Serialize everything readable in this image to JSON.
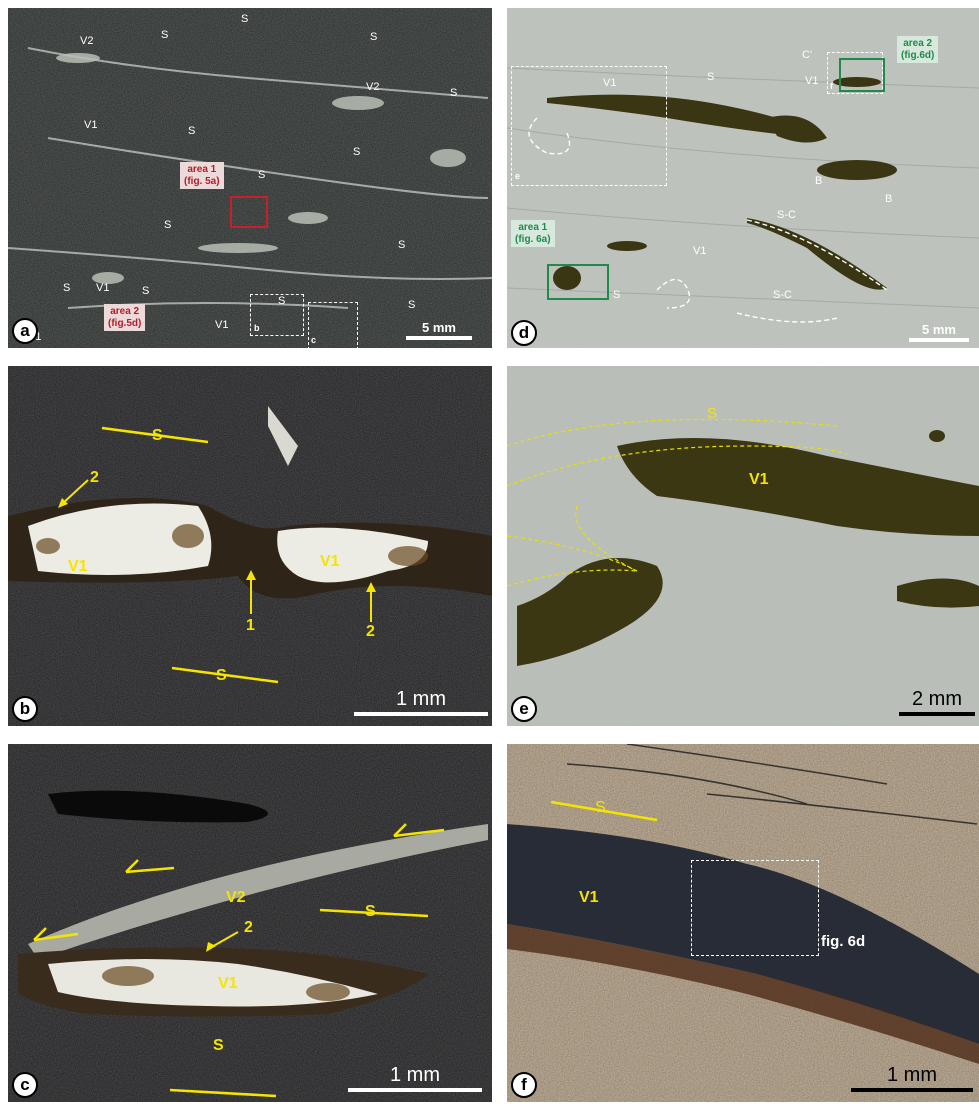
{
  "panels": {
    "a": {
      "badge": "a",
      "scale": "5 mm",
      "labels": [
        "V2",
        "S",
        "S",
        "S",
        "V2",
        "S",
        "V1",
        "S",
        "S",
        "S",
        "S",
        "S",
        "V1",
        "S",
        "V1",
        "S",
        "S",
        "V1",
        "S"
      ],
      "box_labels": [
        "b",
        "c"
      ],
      "area1": {
        "line1": "area 1",
        "line2": "(fig. 5a)"
      },
      "area2": {
        "line1": "area 2",
        "line2": "(fig.5d)"
      }
    },
    "b": {
      "badge": "b",
      "scale": "1 mm",
      "labels": {
        "s_top": "S",
        "s_bottom": "S",
        "v1_left": "V1",
        "v1_right": "V1",
        "n2_left": "2",
        "n1": "1",
        "n2_right": "2"
      }
    },
    "c": {
      "badge": "c",
      "scale": "1 mm",
      "labels": {
        "v2": "V2",
        "s_right": "S",
        "n2": "2",
        "v1": "V1",
        "s_bottom": "S"
      }
    },
    "d": {
      "badge": "d",
      "scale": "5 mm",
      "labels": [
        "S",
        "C'",
        "V1",
        "V1",
        "B",
        "B",
        "S-C",
        "V1",
        "S-C",
        "S"
      ],
      "box_labels": [
        "e",
        "f"
      ],
      "area1": {
        "line1": "area 1",
        "line2": "(fig. 6a)"
      },
      "area2": {
        "line1": "area 2",
        "line2": "(fig.6d)"
      }
    },
    "e": {
      "badge": "e",
      "scale": "2 mm",
      "labels": {
        "s": "S",
        "v1": "V1"
      }
    },
    "f": {
      "badge": "f",
      "scale": "1 mm",
      "labels": {
        "s": "S",
        "v1": "V1",
        "fig": "fig. 6d"
      }
    }
  },
  "colors": {
    "annotation_yellow": "#f5e400",
    "area_red": "#c8202a",
    "area_green": "#1f8a4c"
  }
}
